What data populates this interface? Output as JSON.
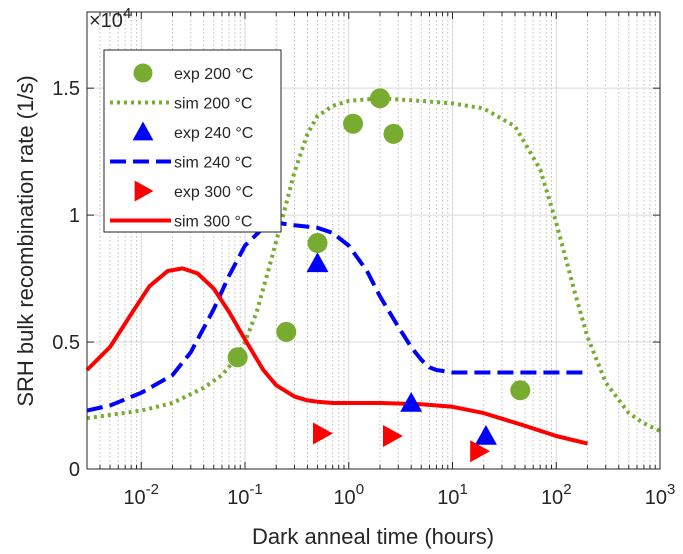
{
  "chart_data": {
    "type": "line",
    "xlabel": "Dark anneal time (hours)",
    "ylabel": "SRH bulk recombination rate (1/s)",
    "x_scale": "log",
    "xlim": [
      0.003,
      1000
    ],
    "ylim": [
      0,
      18000
    ],
    "y_multiplier_label": "×10",
    "y_multiplier_exponent": "4",
    "x_ticks": [
      {
        "value": 0.01,
        "base": "10",
        "exp": "-2"
      },
      {
        "value": 0.1,
        "base": "10",
        "exp": "-1"
      },
      {
        "value": 1,
        "base": "10",
        "exp": "0"
      },
      {
        "value": 10,
        "base": "10",
        "exp": "1"
      },
      {
        "value": 100,
        "base": "10",
        "exp": "2"
      },
      {
        "value": 1000,
        "base": "10",
        "exp": "3"
      }
    ],
    "y_ticks": [
      {
        "value": 0,
        "label": "0"
      },
      {
        "value": 5000,
        "label": "0.5"
      },
      {
        "value": 10000,
        "label": "1"
      },
      {
        "value": 15000,
        "label": "1.5"
      }
    ],
    "grid": true,
    "legend_position": "top-left",
    "series": [
      {
        "name": "exp 200 °C",
        "kind": "scatter",
        "marker": "circle",
        "color": "#77ac30",
        "x": [
          0.085,
          0.25,
          0.5,
          1.1,
          2.0,
          2.7,
          45
        ],
        "y": [
          4400,
          5400,
          8900,
          13600,
          14600,
          13200,
          3100
        ]
      },
      {
        "name": "sim 200 °C",
        "kind": "line",
        "dash": "dotted",
        "color": "#77ac30",
        "x": [
          0.003,
          0.01,
          0.02,
          0.04,
          0.06,
          0.08,
          0.1,
          0.13,
          0.17,
          0.22,
          0.3,
          0.4,
          0.5,
          0.7,
          1,
          2,
          5,
          10,
          20,
          40,
          70,
          100,
          150,
          200,
          300,
          500,
          700,
          1000
        ],
        "y": [
          2000,
          2300,
          2600,
          3200,
          3700,
          4300,
          5000,
          6200,
          7900,
          9600,
          11700,
          13200,
          13900,
          14300,
          14500,
          14600,
          14500,
          14400,
          14200,
          13500,
          11800,
          9700,
          7000,
          5200,
          3400,
          2200,
          1800,
          1500
        ]
      },
      {
        "name": "exp 240 °C",
        "kind": "scatter",
        "marker": "triangle-up",
        "color": "#0000ff",
        "x": [
          0.5,
          4.0,
          21
        ],
        "y": [
          8100,
          2600,
          1300
        ]
      },
      {
        "name": "sim 240 °C",
        "kind": "line",
        "dash": "dashed",
        "color": "#0000ff",
        "x": [
          0.003,
          0.005,
          0.01,
          0.02,
          0.03,
          0.05,
          0.07,
          0.1,
          0.15,
          0.2,
          0.3,
          0.5,
          0.7,
          1,
          1.5,
          2,
          3,
          4,
          5,
          6,
          7,
          10,
          15,
          20,
          50,
          100,
          200
        ],
        "y": [
          2300,
          2500,
          3000,
          3700,
          4600,
          6300,
          7600,
          8800,
          9500,
          9700,
          9600,
          9500,
          9300,
          8800,
          7800,
          6800,
          5600,
          4800,
          4300,
          4000,
          3900,
          3800,
          3800,
          3800,
          3800,
          3800,
          3800
        ]
      },
      {
        "name": "exp 300 °C",
        "kind": "scatter",
        "marker": "triangle-right",
        "color": "#ff0000",
        "x": [
          0.55,
          2.6,
          18
        ],
        "y": [
          1400,
          1300,
          700
        ]
      },
      {
        "name": "sim 300 °C",
        "kind": "line",
        "dash": "solid",
        "color": "#ff0000",
        "x": [
          0.003,
          0.005,
          0.008,
          0.012,
          0.018,
          0.025,
          0.035,
          0.05,
          0.07,
          0.1,
          0.15,
          0.2,
          0.3,
          0.4,
          0.5,
          0.7,
          1,
          2,
          5,
          10,
          20,
          50,
          100,
          200
        ],
        "y": [
          3900,
          4800,
          6100,
          7200,
          7800,
          7900,
          7700,
          7100,
          6200,
          5100,
          3900,
          3300,
          2850,
          2700,
          2650,
          2600,
          2600,
          2600,
          2550,
          2450,
          2200,
          1700,
          1300,
          1000
        ]
      }
    ]
  }
}
